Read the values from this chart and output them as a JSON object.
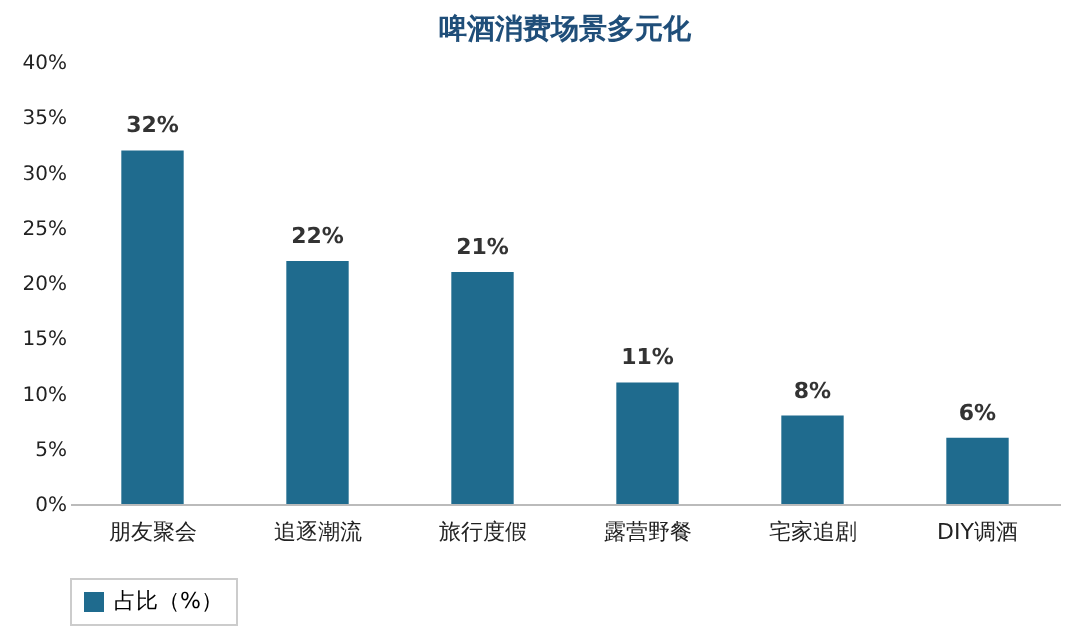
{
  "chart_data": {
    "type": "bar",
    "title": "啤酒消费场景多元化",
    "categories": [
      "朋友聚会",
      "追逐潮流",
      "旅行度假",
      "露营野餐",
      "宅家追剧",
      "DIY调酒"
    ],
    "series": [
      {
        "name": "占比（%）",
        "color": "#1f6b8e",
        "values": [
          32,
          22,
          21,
          11,
          8,
          6
        ],
        "value_labels": [
          "32%",
          "22%",
          "21%",
          "11%",
          "8%",
          "6%"
        ]
      }
    ],
    "ylim": [
      0,
      40
    ],
    "yticks": [
      {
        "value": 0,
        "label": "0%"
      },
      {
        "value": 5,
        "label": "5%"
      },
      {
        "value": 10,
        "label": "10%"
      },
      {
        "value": 15,
        "label": "15%"
      },
      {
        "value": 20,
        "label": "20%"
      },
      {
        "value": 25,
        "label": "25%"
      },
      {
        "value": 30,
        "label": "30%"
      },
      {
        "value": 35,
        "label": "35%"
      },
      {
        "value": 40,
        "label": "40%"
      }
    ],
    "grid": false,
    "legend": "bottom"
  }
}
